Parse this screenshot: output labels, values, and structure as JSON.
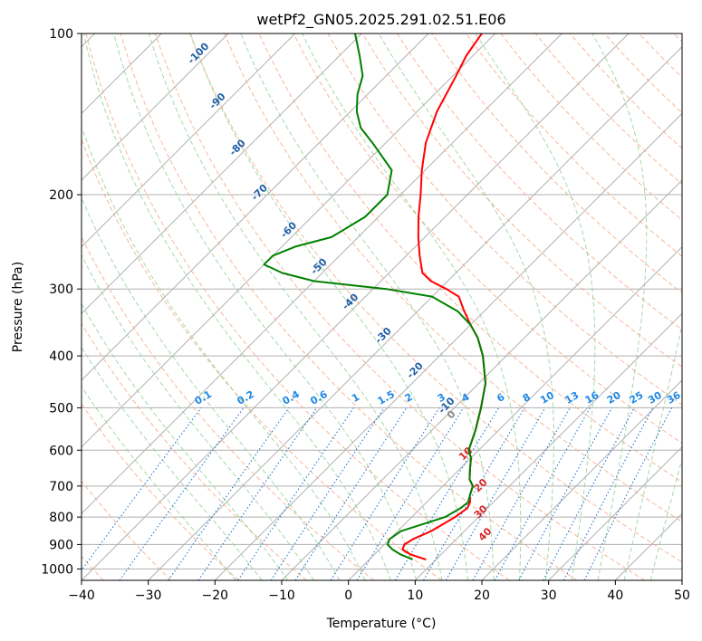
{
  "chart_data": {
    "type": "line",
    "subtype": "skew-t log-p diagram",
    "title": "wetPf2_GN05.2025.291.02.51.E06",
    "xlabel": "Temperature (°C)",
    "ylabel": "Pressure (hPa)",
    "xlim": [
      -40,
      50
    ],
    "ylim": [
      1050,
      100
    ],
    "xticks": [
      -40,
      -30,
      -20,
      -10,
      0,
      10,
      20,
      30,
      40,
      50
    ],
    "yticks": [
      100,
      200,
      300,
      400,
      500,
      600,
      700,
      800,
      900,
      1000
    ],
    "grid": true,
    "series": [
      {
        "name": "Temperature",
        "color": "#ff0000",
        "points": [
          [
            960,
            8.5
          ],
          [
            940,
            5.5
          ],
          [
            920,
            3.5
          ],
          [
            900,
            3.0
          ],
          [
            880,
            3.5
          ],
          [
            850,
            5.0
          ],
          [
            800,
            6.5
          ],
          [
            770,
            7.0
          ],
          [
            750,
            6.5
          ],
          [
            730,
            5.5
          ],
          [
            700,
            4.5
          ],
          [
            680,
            3.0
          ],
          [
            650,
            1.5
          ],
          [
            620,
            0.0
          ],
          [
            600,
            -1.5
          ],
          [
            550,
            -3.5
          ],
          [
            500,
            -6.0
          ],
          [
            450,
            -9.0
          ],
          [
            400,
            -13.5
          ],
          [
            370,
            -17.0
          ],
          [
            350,
            -20.0
          ],
          [
            330,
            -23.0
          ],
          [
            310,
            -26.0
          ],
          [
            300,
            -29.0
          ],
          [
            290,
            -32.5
          ],
          [
            280,
            -35.0
          ],
          [
            260,
            -38.0
          ],
          [
            240,
            -41.0
          ],
          [
            220,
            -44.0
          ],
          [
            200,
            -47.0
          ],
          [
            180,
            -50.5
          ],
          [
            160,
            -54.0
          ],
          [
            140,
            -57.0
          ],
          [
            120,
            -59.5
          ],
          [
            110,
            -61.0
          ],
          [
            100,
            -62.0
          ]
        ]
      },
      {
        "name": "Dewpoint",
        "color": "#008000",
        "points": [
          [
            960,
            6.5
          ],
          [
            940,
            4.0
          ],
          [
            920,
            2.0
          ],
          [
            900,
            0.5
          ],
          [
            880,
            0.0
          ],
          [
            850,
            0.5
          ],
          [
            800,
            5.0
          ],
          [
            770,
            6.0
          ],
          [
            750,
            6.2
          ],
          [
            730,
            5.5
          ],
          [
            700,
            4.5
          ],
          [
            680,
            3.0
          ],
          [
            650,
            1.5
          ],
          [
            620,
            0.0
          ],
          [
            600,
            -1.5
          ],
          [
            550,
            -3.5
          ],
          [
            500,
            -6.0
          ],
          [
            450,
            -9.0
          ],
          [
            400,
            -13.5
          ],
          [
            370,
            -17.0
          ],
          [
            350,
            -20.0
          ],
          [
            330,
            -24.0
          ],
          [
            310,
            -30.0
          ],
          [
            300,
            -38.0
          ],
          [
            290,
            -50.0
          ],
          [
            280,
            -56.0
          ],
          [
            270,
            -60.0
          ],
          [
            260,
            -60.0
          ],
          [
            250,
            -58.0
          ],
          [
            240,
            -54.0
          ],
          [
            220,
            -52.0
          ],
          [
            200,
            -52.0
          ],
          [
            180,
            -55.0
          ],
          [
            160,
            -62.0
          ],
          [
            150,
            -66.0
          ],
          [
            140,
            -69.0
          ],
          [
            130,
            -71.5
          ],
          [
            120,
            -73.5
          ],
          [
            110,
            -77.0
          ],
          [
            100,
            -81.0
          ]
        ]
      }
    ],
    "dry_adiabat_labels": [
      "-100",
      "-90",
      "-80",
      "-70",
      "-60",
      "-50",
      "-40",
      "-30",
      "-20",
      "-10"
    ],
    "moist_adiabat_labels": [
      "0",
      "10",
      "20",
      "30",
      "40"
    ],
    "mixing_ratio_labels": [
      "0.1",
      "0.2",
      "0.4",
      "0.6",
      "1",
      "1.5",
      "2",
      "3",
      "4",
      "6",
      "8",
      "10",
      "13",
      "16",
      "20",
      "25",
      "30",
      "36"
    ],
    "mixing_ratio_values": [
      0.1,
      0.2,
      0.4,
      0.6,
      1,
      1.5,
      2,
      3,
      4,
      6,
      8,
      10,
      13,
      16,
      20,
      25,
      30,
      36
    ]
  },
  "colors": {
    "temperature": "#ff0000",
    "dewpoint": "#008000",
    "dry_adiabat": "#f4a582",
    "moist_adiabat": "#8fcf8f",
    "mixing_ratio": "#1f77d4",
    "dry_adiabat_label": "#1f5fa8",
    "moist_adiabat_label": "#d62728",
    "mixing_label": "#1e88e5",
    "grid": "#b0b0b0"
  }
}
